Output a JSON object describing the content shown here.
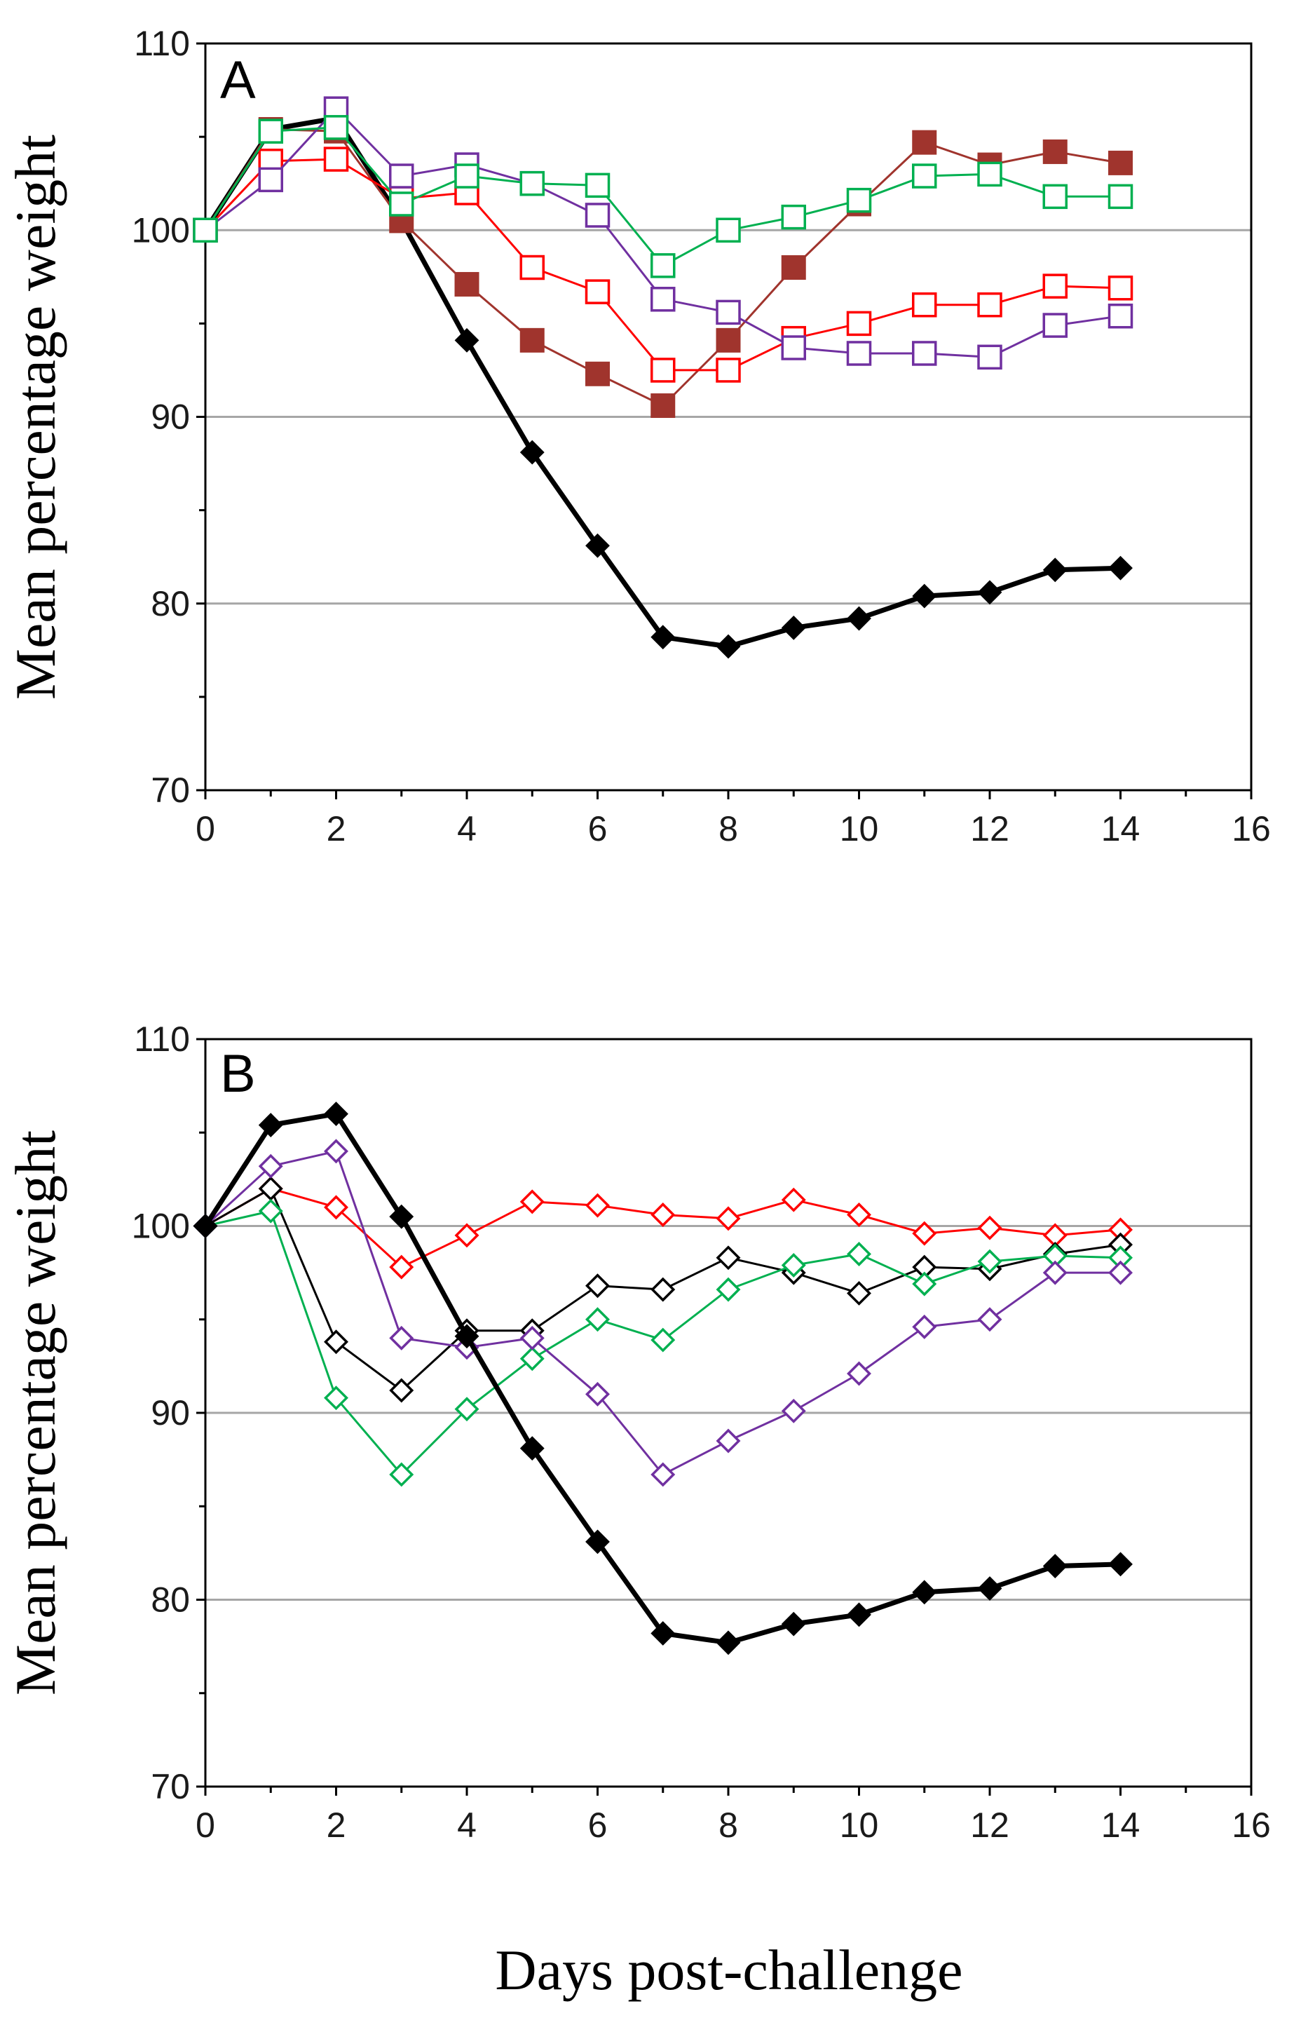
{
  "figure": {
    "xlabel": "Days post-challenge"
  },
  "chart_data": [
    {
      "type": "line",
      "panel_label": "A",
      "ylabel": "Mean percentage weight",
      "xlim": [
        0,
        16
      ],
      "ylim": [
        70,
        110
      ],
      "x_ticks": [
        0,
        2,
        4,
        6,
        8,
        10,
        12,
        14,
        16
      ],
      "y_ticks": [
        70,
        80,
        90,
        100,
        110
      ],
      "grid": "horizontal major gridlines",
      "x": [
        0,
        1,
        2,
        3,
        4,
        5,
        6,
        7,
        8,
        9,
        10,
        11,
        12,
        13,
        14
      ],
      "series": [
        {
          "name": "black filled diamond",
          "color": "#000000",
          "marker": "diamond",
          "filled": true,
          "width": 7,
          "values": [
            100,
            105.4,
            106,
            100.5,
            94.1,
            88.1,
            83.1,
            78.2,
            77.7,
            78.7,
            79.2,
            80.4,
            80.6,
            81.8,
            81.9
          ]
        },
        {
          "name": "brown filled square",
          "color": "#a0342d",
          "marker": "square",
          "filled": true,
          "width": 3,
          "values": [
            100,
            105.4,
            105.3,
            100.5,
            97.1,
            94.1,
            92.3,
            90.6,
            94.1,
            98,
            101.4,
            104.7,
            103.5,
            104.2,
            103.6
          ]
        },
        {
          "name": "red open square",
          "color": "#ff0000",
          "marker": "square",
          "filled": false,
          "width": 3,
          "values": [
            100,
            103.7,
            103.8,
            101.7,
            102,
            98,
            96.7,
            92.5,
            92.5,
            94.2,
            95,
            96,
            96,
            97,
            96.9
          ]
        },
        {
          "name": "purple open square",
          "color": "#7030a0",
          "marker": "square",
          "filled": false,
          "width": 3,
          "values": [
            100,
            102.7,
            106.5,
            102.9,
            103.5,
            102.5,
            100.8,
            96.3,
            95.6,
            93.7,
            93.4,
            93.4,
            93.2,
            94.9,
            95.4
          ]
        },
        {
          "name": "green open square",
          "color": "#00b050",
          "marker": "square",
          "filled": false,
          "width": 3,
          "values": [
            100,
            105.3,
            105.5,
            101.4,
            102.9,
            102.5,
            102.4,
            98.1,
            100,
            100.7,
            101.6,
            102.9,
            103,
            101.8,
            101.8
          ]
        }
      ]
    },
    {
      "type": "line",
      "panel_label": "B",
      "ylabel": "Mean percentage weight",
      "xlim": [
        0,
        16
      ],
      "ylim": [
        70,
        110
      ],
      "x_ticks": [
        0,
        2,
        4,
        6,
        8,
        10,
        12,
        14,
        16
      ],
      "y_ticks": [
        70,
        80,
        90,
        100,
        110
      ],
      "grid": "horizontal major gridlines",
      "x": [
        0,
        1,
        2,
        3,
        4,
        5,
        6,
        7,
        8,
        9,
        10,
        11,
        12,
        13,
        14
      ],
      "series": [
        {
          "name": "red open diamond",
          "color": "#ff0000",
          "marker": "diamond",
          "filled": false,
          "width": 3,
          "values": [
            100,
            102,
            101,
            97.8,
            99.5,
            101.3,
            101.1,
            100.6,
            100.4,
            101.4,
            100.6,
            99.6,
            99.9,
            99.5,
            99.8
          ]
        },
        {
          "name": "black open diamond",
          "color": "#000000",
          "marker": "diamond",
          "filled": false,
          "width": 3,
          "values": [
            100,
            102,
            93.8,
            91.2,
            94.4,
            94.4,
            96.8,
            96.6,
            98.3,
            97.5,
            96.4,
            97.8,
            97.7,
            98.5,
            99
          ]
        },
        {
          "name": "green open diamond",
          "color": "#00b050",
          "marker": "diamond",
          "filled": false,
          "width": 3,
          "values": [
            100,
            100.8,
            90.8,
            86.7,
            90.2,
            92.9,
            95,
            93.9,
            96.6,
            97.9,
            98.5,
            96.9,
            98.1,
            98.4,
            98.3
          ]
        },
        {
          "name": "purple open diamond",
          "color": "#7030a0",
          "marker": "diamond",
          "filled": false,
          "width": 3,
          "values": [
            100,
            103.2,
            104,
            94,
            93.5,
            94,
            91,
            86.7,
            88.5,
            90.1,
            92.1,
            94.6,
            95,
            97.5,
            97.5
          ]
        },
        {
          "name": "black filled diamond",
          "color": "#000000",
          "marker": "diamond",
          "filled": true,
          "width": 7,
          "values": [
            100,
            105.4,
            106,
            100.5,
            94.1,
            88.1,
            83.1,
            78.2,
            77.7,
            78.7,
            79.2,
            80.4,
            80.6,
            81.8,
            81.9
          ]
        }
      ]
    }
  ]
}
